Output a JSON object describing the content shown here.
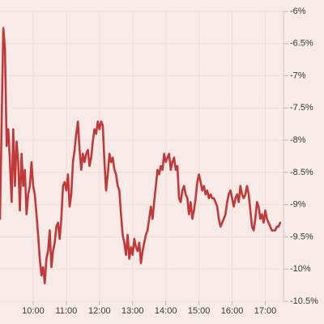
{
  "chart_data": {
    "type": "line",
    "x": [
      540,
      543,
      546,
      549,
      552,
      555,
      558,
      561,
      564,
      567,
      570,
      573,
      576,
      579,
      582,
      585,
      588,
      591,
      594,
      597,
      600,
      603,
      606,
      609,
      612,
      615,
      618,
      621,
      624,
      627,
      630,
      633,
      636,
      639,
      642,
      645,
      648,
      651,
      654,
      657,
      660,
      663,
      666,
      669,
      672,
      675,
      678,
      681,
      684,
      687,
      690,
      693,
      696,
      699,
      702,
      705,
      708,
      711,
      714,
      717,
      720,
      723,
      726,
      729,
      732,
      735,
      738,
      741,
      744,
      747,
      750,
      753,
      756,
      759,
      762,
      765,
      768,
      771,
      774,
      777,
      780,
      783,
      786,
      789,
      792,
      795,
      798,
      801,
      804,
      807,
      810,
      813,
      816,
      819,
      822,
      825,
      828,
      831,
      834,
      837,
      840,
      843,
      846,
      849,
      852,
      855,
      858,
      861,
      864,
      867,
      870,
      873,
      876,
      879,
      882,
      885,
      888,
      891,
      894,
      897,
      900,
      903,
      906,
      909,
      912,
      915,
      918,
      921,
      924,
      927,
      930,
      933,
      936,
      939,
      942,
      945,
      948,
      951,
      954,
      957,
      960,
      963,
      966,
      969,
      972,
      975,
      978,
      981,
      984,
      987,
      990,
      993,
      996,
      999,
      1002,
      1005,
      1008,
      1011,
      1014,
      1017,
      1020,
      1023,
      1026,
      1029,
      1032,
      1035,
      1038,
      1041,
      1044,
      1047
    ],
    "series": [
      {
        "color": "#c0393b",
        "values": [
          -9.22,
          -7.71,
          -6.26,
          -6.58,
          -8.09,
          -7.83,
          -8.34,
          -8.96,
          -7.83,
          -8.71,
          -8.02,
          -8.34,
          -9.09,
          -8.21,
          -8.71,
          -8.46,
          -9.15,
          -8.84,
          -8.71,
          -8.34,
          -8.71,
          -8.84,
          -9.15,
          -9.47,
          -9.84,
          -10.1,
          -9.97,
          -10.22,
          -9.84,
          -9.72,
          -9.4,
          -9.97,
          -9.72,
          -9.59,
          -9.34,
          -9.28,
          -9.53,
          -9.22,
          -8.71,
          -8.65,
          -8.78,
          -8.53,
          -9.03,
          -8.84,
          -8.34,
          -8.15,
          -7.9,
          -7.71,
          -8.15,
          -8.46,
          -8.21,
          -8.34,
          -8.21,
          -8.15,
          -8.4,
          -8.27,
          -8.02,
          -7.83,
          -7.9,
          -7.71,
          -7.83,
          -7.71,
          -7.77,
          -8.34,
          -8.78,
          -8.53,
          -8.21,
          -8.34,
          -8.27,
          -8.46,
          -8.53,
          -8.71,
          -8.78,
          -9.15,
          -9.47,
          -9.59,
          -9.78,
          -9.47,
          -9.84,
          -9.66,
          -9.78,
          -9.53,
          -9.66,
          -9.72,
          -9.59,
          -9.91,
          -9.72,
          -9.59,
          -9.47,
          -9.4,
          -9.22,
          -9.03,
          -9.22,
          -8.96,
          -8.71,
          -8.46,
          -8.53,
          -8.4,
          -8.46,
          -8.21,
          -8.34,
          -8.27,
          -8.21,
          -8.46,
          -8.34,
          -8.27,
          -8.46,
          -8.4,
          -8.9,
          -8.96,
          -8.78,
          -8.71,
          -8.84,
          -8.9,
          -9.15,
          -8.96,
          -9.22,
          -9.09,
          -8.9,
          -8.65,
          -8.53,
          -8.65,
          -8.78,
          -8.71,
          -8.84,
          -8.78,
          -8.9,
          -8.84,
          -8.9,
          -8.9,
          -8.96,
          -9.03,
          -9.22,
          -9.34,
          -9.28,
          -9.22,
          -9.15,
          -8.96,
          -8.84,
          -8.78,
          -8.9,
          -9.03,
          -8.9,
          -8.84,
          -8.96,
          -8.71,
          -8.84,
          -8.9,
          -8.84,
          -8.71,
          -8.84,
          -9.09,
          -9.34,
          -9.4,
          -9.22,
          -8.96,
          -9.03,
          -9.22,
          -9.15,
          -9.28,
          -9.09,
          -9.22,
          -9.28,
          -9.34,
          -9.4,
          -9.4,
          -9.4,
          -9.34,
          -9.34,
          -9.28
        ]
      }
    ],
    "xlim": [
      540,
      1053
    ],
    "xticks": [
      {
        "value": 600,
        "label": "10:00"
      },
      {
        "value": 660,
        "label": "11:00"
      },
      {
        "value": 720,
        "label": "12:00"
      },
      {
        "value": 780,
        "label": "13:00"
      },
      {
        "value": 840,
        "label": "14:00"
      },
      {
        "value": 900,
        "label": "15:00"
      },
      {
        "value": 960,
        "label": "16:00"
      },
      {
        "value": 1020,
        "label": "17:00"
      }
    ],
    "ylim": [
      -10.5,
      -6
    ],
    "yticks": [
      {
        "value": -6,
        "label": "-6%"
      },
      {
        "value": -6.5,
        "label": "-6.5%"
      },
      {
        "value": -7,
        "label": "-7%"
      },
      {
        "value": -7.5,
        "label": "-7.5%"
      },
      {
        "value": -8,
        "label": "-8%"
      },
      {
        "value": -8.5,
        "label": "-8.5%"
      },
      {
        "value": -9,
        "label": "-9%"
      },
      {
        "value": -9.5,
        "label": "-9.5%"
      },
      {
        "value": -10,
        "label": "-10%"
      },
      {
        "value": -10.5,
        "label": "-10.5%"
      }
    ],
    "grid": true
  }
}
